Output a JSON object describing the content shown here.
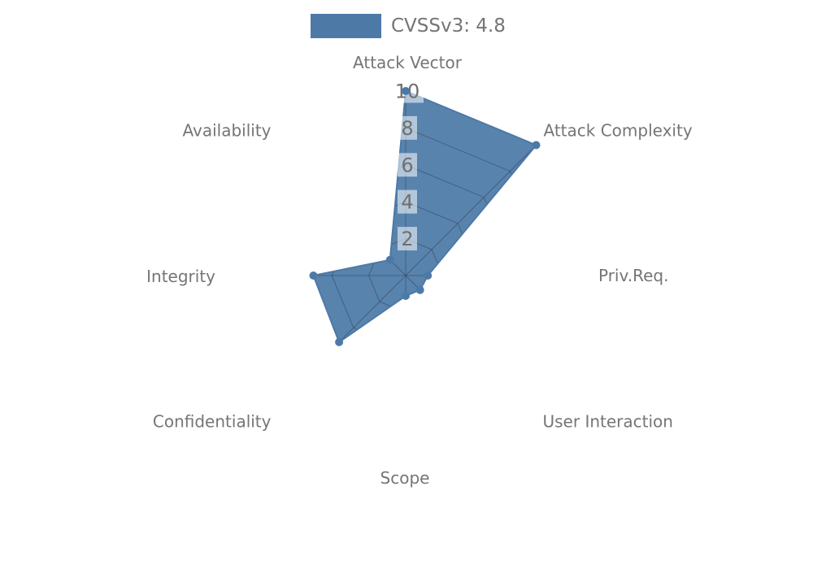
{
  "legend": {
    "label": "CVSSv3: 4.8"
  },
  "colors": {
    "accent": "#4d79a7",
    "fill": "#4f7ca9",
    "fill_opacity": 0.95,
    "grid": "rgba(45,62,82,0.5)",
    "axis_label_text": "#757575",
    "tick_text": "#6f6f6f",
    "tick_bg": "rgba(255,255,255,0.55)",
    "background": "#ffffff"
  },
  "chart_data": {
    "type": "radar",
    "title": "",
    "legend_entries": [
      "CVSSv3: 4.8"
    ],
    "legend_position": "top-center",
    "axes": [
      "Attack Vector",
      "Attack Complexity",
      "Priv.Req.",
      "User Interaction",
      "Scope",
      "Confidentiality",
      "Integrity",
      "Availability"
    ],
    "series": [
      {
        "name": "CVSSv3: 4.8",
        "values": [
          10,
          10,
          1.2,
          1.1,
          1.1,
          5.1,
          5,
          1.2
        ]
      }
    ],
    "rlim": [
      0,
      10
    ],
    "tick_values": [
      2,
      4,
      6,
      8,
      10
    ],
    "tick_labels": [
      "2",
      "4",
      "6",
      "8",
      "10"
    ],
    "start_axis": "top",
    "direction": "clockwise",
    "gridshape": "linear",
    "grid_visible_only_inside_fill": true
  }
}
